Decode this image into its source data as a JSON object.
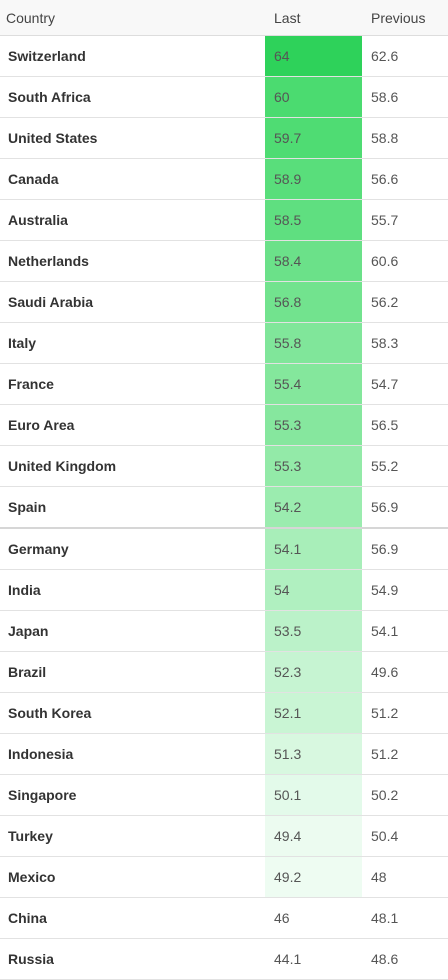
{
  "headers": {
    "country": "Country",
    "last": "Last",
    "previous": "Previous"
  },
  "rows": [
    {
      "country": "Switzerland",
      "last": "64",
      "previous": "62.6",
      "color": "#2ed25a"
    },
    {
      "country": "South Africa",
      "last": "60",
      "previous": "58.6",
      "color": "#4bdb70"
    },
    {
      "country": "United States",
      "last": "59.7",
      "previous": "58.8",
      "color": "#4fdc73"
    },
    {
      "country": "Canada",
      "last": "58.9",
      "previous": "56.6",
      "color": "#59de7b"
    },
    {
      "country": "Australia",
      "last": "58.5",
      "previous": "55.7",
      "color": "#5fdf80"
    },
    {
      "country": "Netherlands",
      "last": "58.4",
      "previous": "60.6",
      "color": "#6be189"
    },
    {
      "country": "Saudi Arabia",
      "last": "56.8",
      "previous": "56.2",
      "color": "#72e38e"
    },
    {
      "country": "Italy",
      "last": "55.8",
      "previous": "58.3",
      "color": "#80e69a"
    },
    {
      "country": "France",
      "last": "55.4",
      "previous": "54.7",
      "color": "#84e79c"
    },
    {
      "country": "Euro Area",
      "last": "55.3",
      "previous": "56.5",
      "color": "#86e79e"
    },
    {
      "country": "United Kingdom",
      "last": "55.3",
      "previous": "55.2",
      "color": "#93eaa8"
    },
    {
      "country": "Spain",
      "last": "54.2",
      "previous": "56.9",
      "color": "#9becaf"
    },
    {
      "country": "Germany",
      "last": "54.1",
      "previous": "56.9",
      "color": "#a8eeb9"
    },
    {
      "country": "India",
      "last": "54",
      "previous": "54.9",
      "color": "#b0f0c0"
    },
    {
      "country": "Japan",
      "last": "53.5",
      "previous": "54.1",
      "color": "#bbf2c9"
    },
    {
      "country": "Brazil",
      "last": "52.3",
      "previous": "49.6",
      "color": "#c6f4d2"
    },
    {
      "country": "South Korea",
      "last": "52.1",
      "previous": "51.2",
      "color": "#c9f5d4"
    },
    {
      "country": "Indonesia",
      "last": "51.3",
      "previous": "51.2",
      "color": "#d8f8e0"
    },
    {
      "country": "Singapore",
      "last": "50.1",
      "previous": "50.2",
      "color": "#e3faea"
    },
    {
      "country": "Turkey",
      "last": "49.4",
      "previous": "50.4",
      "color": "#ecfbf0"
    },
    {
      "country": "Mexico",
      "last": "49.2",
      "previous": "48",
      "color": "#eefcf2"
    },
    {
      "country": "China",
      "last": "46",
      "previous": "48.1",
      "color": "#ffffff"
    },
    {
      "country": "Russia",
      "last": "44.1",
      "previous": "48.6",
      "color": "#ffffff"
    }
  ]
}
